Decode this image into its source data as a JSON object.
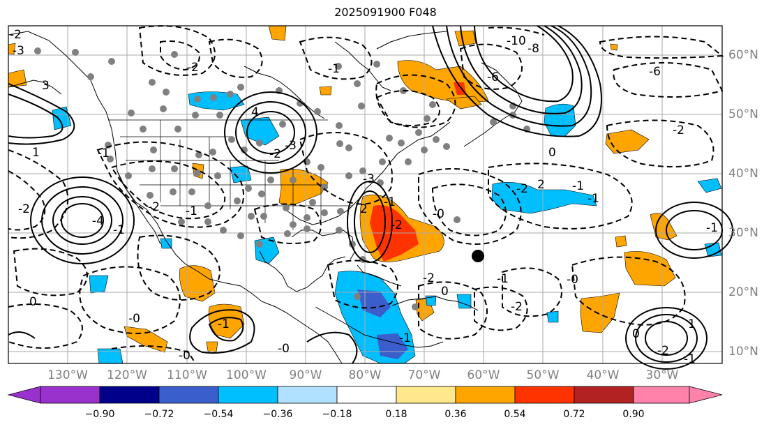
{
  "title": "2025091900 F048",
  "longitude_labels": [
    "130°W",
    "120°W",
    "110°W",
    "100°W",
    "90°W",
    "80°W",
    "70°W",
    "60°W",
    "50°W",
    "40°W",
    "30°W"
  ],
  "latitude_labels": [
    "60°N",
    "50°N",
    "40°N",
    "30°N",
    "20°N",
    "10°N"
  ],
  "colorbar": {
    "ticks": [
      "−0.90",
      "−0.72",
      "−0.54",
      "−0.36",
      "−0.18",
      "0.18",
      "0.36",
      "0.54",
      "0.72",
      "0.90"
    ],
    "colors": [
      "#9932CC",
      "#00008B",
      "#3A5FCD",
      "#00BFFF",
      "#B0E2FF",
      "#FFFFFF",
      "#FFE88C",
      "#FFA500",
      "#FF3300",
      "#B22222",
      "#FF82AB"
    ]
  },
  "contour_labels": [
    "-2",
    "-3",
    "-1",
    "1",
    "3",
    "-4",
    "-2",
    "-1",
    "-2",
    "-1",
    "0",
    "-0",
    "-2",
    "4",
    "-3",
    "-2",
    "-1",
    "2",
    "-1",
    "-2",
    "-3",
    "-6",
    "-8",
    "-10",
    "-6",
    "-2",
    "0",
    "-2",
    "-1",
    "-0",
    "-0",
    "-1",
    "1",
    "0",
    "-1",
    "-2",
    "0",
    "-0",
    "-1",
    "-1",
    "-2",
    "-1",
    "-0",
    "-2",
    "-1",
    "2"
  ]
}
